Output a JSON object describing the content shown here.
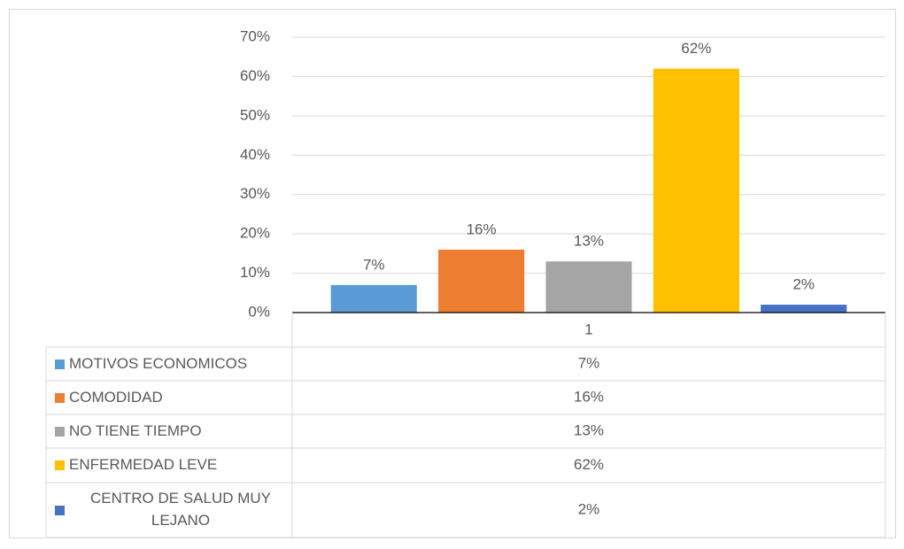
{
  "chart_data": {
    "type": "bar",
    "categories": [
      "1"
    ],
    "series": [
      {
        "name": "MOTIVOS ECONOMICOS",
        "color": "#5b9bd5",
        "values": [
          7
        ],
        "value_labels": [
          "7%"
        ]
      },
      {
        "name": "COMODIDAD",
        "color": "#ed7d31",
        "values": [
          16
        ],
        "value_labels": [
          "16%"
        ]
      },
      {
        "name": "NO TIENE TIEMPO",
        "color": "#a5a5a5",
        "values": [
          13
        ],
        "value_labels": [
          "13%"
        ]
      },
      {
        "name": "ENFERMEDAD LEVE",
        "color": "#ffc000",
        "values": [
          62
        ],
        "value_labels": [
          "62%"
        ]
      },
      {
        "name": "CENTRO DE SALUD MUY LEJANO",
        "color": "#4472c4",
        "values": [
          2
        ],
        "value_labels": [
          "2%"
        ]
      }
    ],
    "ylim": [
      0,
      70
    ],
    "yticks": [
      {
        "value": 0,
        "label": "0%"
      },
      {
        "value": 10,
        "label": "10%"
      },
      {
        "value": 20,
        "label": "20%"
      },
      {
        "value": 30,
        "label": "30%"
      },
      {
        "value": 40,
        "label": "40%"
      },
      {
        "value": 50,
        "label": "50%"
      },
      {
        "value": 60,
        "label": "60%"
      },
      {
        "value": 70,
        "label": "70%"
      }
    ],
    "grid": true
  }
}
